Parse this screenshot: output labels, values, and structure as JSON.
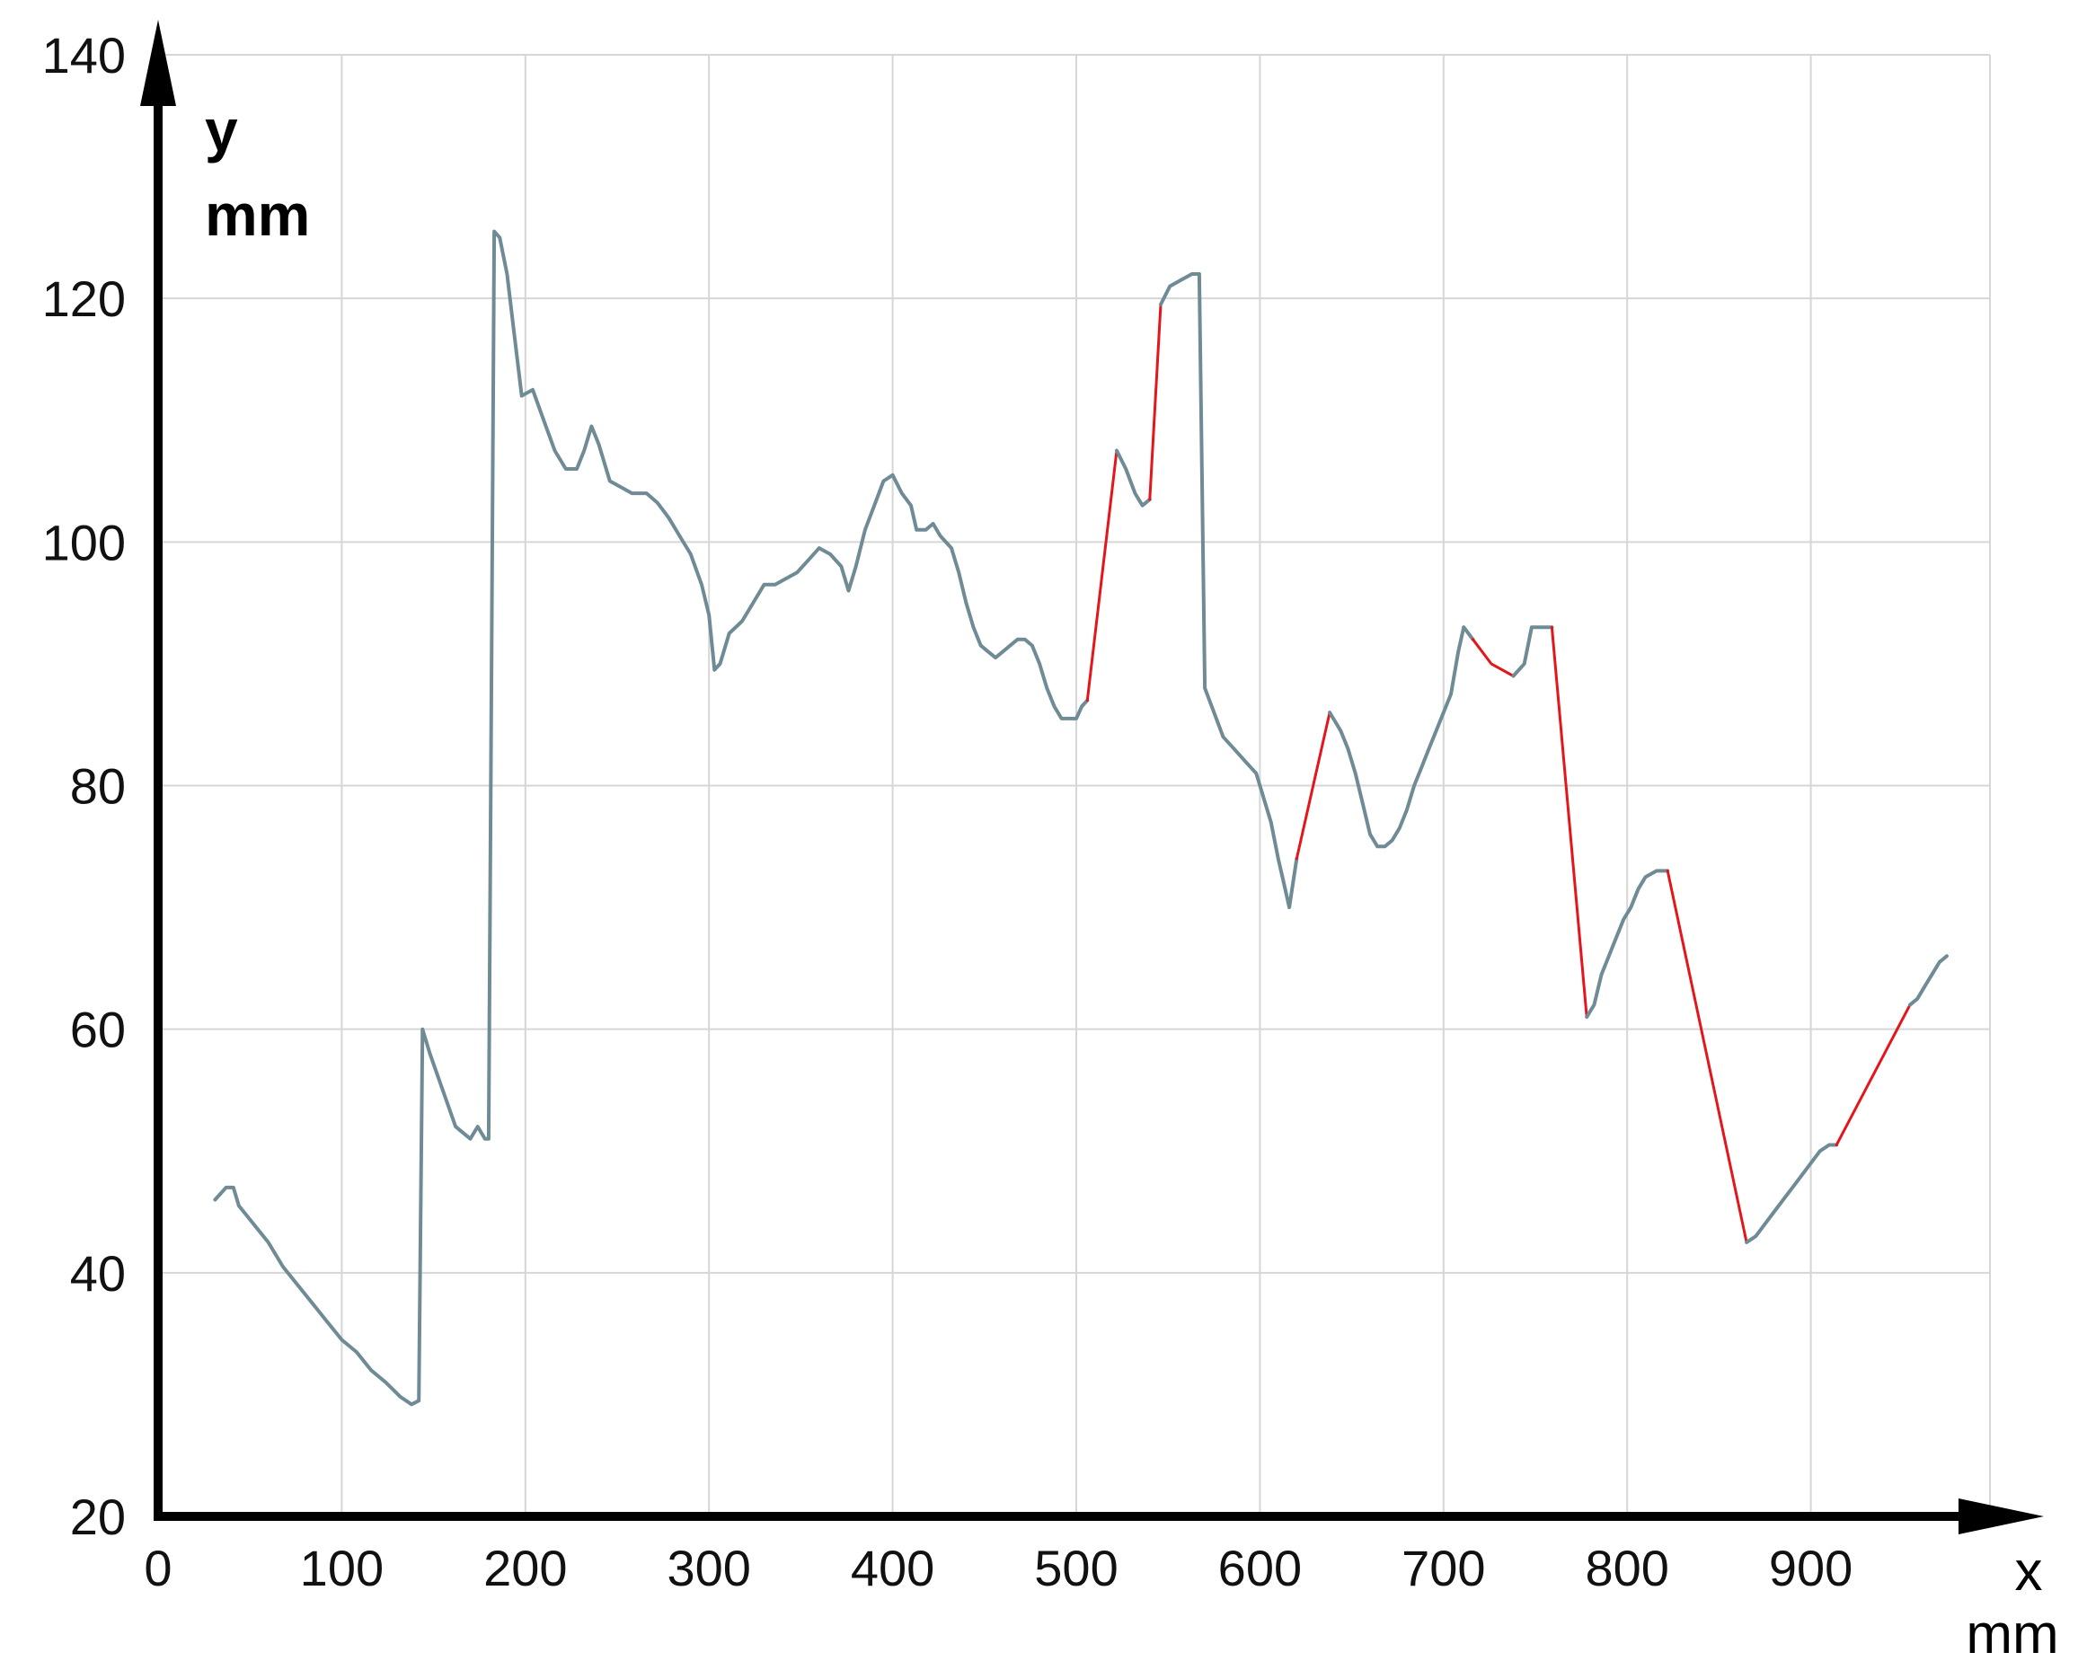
{
  "chart_data": {
    "type": "line",
    "title": "",
    "xlabel": "x",
    "xunit": "mm",
    "ylabel": "y",
    "yunit": "mm",
    "xlim": [
      0,
      1000
    ],
    "ylim": [
      20,
      140
    ],
    "x_ticks": [
      0,
      100,
      200,
      300,
      400,
      500,
      600,
      700,
      800,
      900
    ],
    "y_ticks": [
      20,
      40,
      60,
      80,
      100,
      120,
      140
    ],
    "x_tick_labels": [
      "0",
      "100",
      "200",
      "300",
      "400",
      "500",
      "600",
      "700",
      "800",
      "900"
    ],
    "y_tick_labels": [
      "20",
      "40",
      "60",
      "80",
      "100",
      "120",
      "140"
    ],
    "grid": true,
    "legend": "none",
    "colors": {
      "measured": "#6f8b95",
      "interpolated": "#e4151b",
      "grid": "#d6d6d6",
      "axis": "#000000"
    },
    "series": [
      {
        "style": "measured",
        "points": [
          [
            31,
            46
          ],
          [
            37,
            47
          ],
          [
            41,
            47
          ],
          [
            44,
            45.5
          ],
          [
            52,
            44
          ],
          [
            60,
            42.5
          ],
          [
            68,
            40.5
          ],
          [
            76,
            39
          ],
          [
            84,
            37.5
          ],
          [
            92,
            36
          ],
          [
            100,
            34.5
          ],
          [
            108,
            33.5
          ],
          [
            116,
            32
          ],
          [
            124,
            31
          ],
          [
            132,
            29.8
          ],
          [
            138,
            29.2
          ],
          [
            142,
            29.5
          ],
          [
            144,
            60
          ],
          [
            148,
            58
          ],
          [
            155,
            55
          ],
          [
            162,
            52
          ],
          [
            170,
            51
          ],
          [
            174,
            52
          ],
          [
            178,
            51
          ],
          [
            180,
            51
          ],
          [
            183,
            125.5
          ],
          [
            186,
            125
          ],
          [
            190,
            122
          ],
          [
            194,
            117
          ],
          [
            198,
            112
          ],
          [
            204,
            112.5
          ],
          [
            210,
            110
          ],
          [
            216,
            107.5
          ],
          [
            222,
            106
          ],
          [
            228,
            106
          ],
          [
            232,
            107.5
          ],
          [
            236,
            109.5
          ],
          [
            240,
            108
          ],
          [
            246,
            105
          ],
          [
            252,
            104.5
          ],
          [
            258,
            104
          ],
          [
            266,
            104
          ],
          [
            272,
            103.2
          ],
          [
            278,
            102
          ],
          [
            284,
            100.5
          ],
          [
            290,
            99
          ],
          [
            296,
            96.5
          ],
          [
            300,
            94
          ],
          [
            303,
            89.5
          ],
          [
            306,
            90
          ],
          [
            311,
            92.5
          ],
          [
            318,
            93.5
          ],
          [
            324,
            95
          ],
          [
            330,
            96.5
          ],
          [
            336,
            96.5
          ],
          [
            342,
            97
          ],
          [
            348,
            97.5
          ],
          [
            354,
            98.5
          ],
          [
            360,
            99.5
          ],
          [
            366,
            99
          ],
          [
            372,
            98
          ],
          [
            376,
            96
          ],
          [
            380,
            98
          ],
          [
            385,
            101
          ],
          [
            390,
            103
          ],
          [
            395,
            105
          ],
          [
            400,
            105.5
          ],
          [
            405,
            104
          ],
          [
            410,
            103
          ],
          [
            413,
            101
          ],
          [
            418,
            101
          ],
          [
            422,
            101.5
          ],
          [
            426,
            100.5
          ],
          [
            432,
            99.5
          ],
          [
            436,
            97.5
          ],
          [
            440,
            95
          ],
          [
            444,
            93
          ],
          [
            448,
            91.5
          ],
          [
            452,
            91
          ],
          [
            456,
            90.5
          ],
          [
            460,
            91
          ],
          [
            464,
            91.5
          ],
          [
            468,
            92
          ],
          [
            472,
            92
          ],
          [
            476,
            91.5
          ],
          [
            480,
            90
          ],
          [
            484,
            88
          ],
          [
            488,
            86.5
          ],
          [
            492,
            85.5
          ],
          [
            496,
            85.5
          ],
          [
            500,
            85.5
          ],
          [
            503,
            86.5
          ],
          [
            506,
            87
          ]
        ]
      },
      {
        "style": "interpolated",
        "points": [
          [
            506,
            87
          ],
          [
            522,
            107.5
          ]
        ]
      },
      {
        "style": "measured",
        "points": [
          [
            522,
            107.5
          ],
          [
            527,
            106
          ],
          [
            532,
            104
          ],
          [
            536,
            103
          ],
          [
            540,
            103.5
          ]
        ]
      },
      {
        "style": "interpolated",
        "points": [
          [
            540,
            103.5
          ],
          [
            546,
            119.5
          ]
        ]
      },
      {
        "style": "measured",
        "points": [
          [
            546,
            119.5
          ],
          [
            551,
            121
          ],
          [
            557,
            121.5
          ],
          [
            563,
            122
          ],
          [
            567,
            122
          ],
          [
            570,
            88
          ],
          [
            575,
            86
          ],
          [
            580,
            84
          ],
          [
            586,
            83
          ],
          [
            592,
            82
          ],
          [
            598,
            81
          ],
          [
            602,
            79
          ],
          [
            606,
            77
          ],
          [
            610,
            74
          ],
          [
            613,
            72
          ],
          [
            616,
            70
          ],
          [
            620,
            74
          ]
        ]
      },
      {
        "style": "interpolated",
        "points": [
          [
            620,
            74
          ],
          [
            638,
            86
          ]
        ]
      },
      {
        "style": "measured",
        "points": [
          [
            638,
            86
          ],
          [
            644,
            84.5
          ],
          [
            648,
            83
          ],
          [
            652,
            81
          ],
          [
            656,
            78.5
          ],
          [
            660,
            76
          ],
          [
            664,
            75
          ],
          [
            668,
            75
          ],
          [
            672,
            75.5
          ],
          [
            676,
            76.5
          ],
          [
            680,
            78
          ],
          [
            684,
            80
          ],
          [
            688,
            81.5
          ],
          [
            692,
            83
          ],
          [
            696,
            84.5
          ],
          [
            700,
            86
          ],
          [
            704,
            87.5
          ],
          [
            708,
            91
          ],
          [
            711,
            93
          ],
          [
            716,
            92
          ]
        ]
      },
      {
        "style": "interpolated",
        "points": [
          [
            716,
            92
          ],
          [
            726,
            90
          ],
          [
            738,
            89
          ]
        ]
      },
      {
        "style": "measured",
        "points": [
          [
            738,
            89
          ],
          [
            744,
            90
          ],
          [
            748,
            93
          ],
          [
            755,
            93
          ],
          [
            759,
            93
          ]
        ]
      },
      {
        "style": "interpolated",
        "points": [
          [
            759,
            93
          ],
          [
            778,
            61
          ]
        ]
      },
      {
        "style": "measured",
        "points": [
          [
            778,
            61
          ],
          [
            782,
            62
          ],
          [
            786,
            64.5
          ],
          [
            790,
            66
          ],
          [
            794,
            67.5
          ],
          [
            798,
            69
          ],
          [
            802,
            70
          ],
          [
            806,
            71.5
          ],
          [
            810,
            72.5
          ],
          [
            816,
            73
          ],
          [
            822,
            73
          ]
        ]
      },
      {
        "style": "interpolated",
        "points": [
          [
            822,
            73
          ],
          [
            865,
            42.5
          ]
        ]
      },
      {
        "style": "measured",
        "points": [
          [
            865,
            42.5
          ],
          [
            870,
            43
          ],
          [
            875,
            44
          ],
          [
            880,
            45
          ],
          [
            885,
            46
          ],
          [
            890,
            47
          ],
          [
            895,
            48
          ],
          [
            900,
            49
          ],
          [
            905,
            50
          ],
          [
            910,
            50.5
          ],
          [
            914,
            50.5
          ]
        ]
      },
      {
        "style": "interpolated",
        "points": [
          [
            914,
            50.5
          ],
          [
            954,
            62
          ]
        ]
      },
      {
        "style": "measured",
        "points": [
          [
            954,
            62
          ],
          [
            958,
            62.5
          ],
          [
            962,
            63.5
          ],
          [
            966,
            64.5
          ],
          [
            970,
            65.5
          ],
          [
            974,
            66
          ]
        ]
      }
    ]
  }
}
